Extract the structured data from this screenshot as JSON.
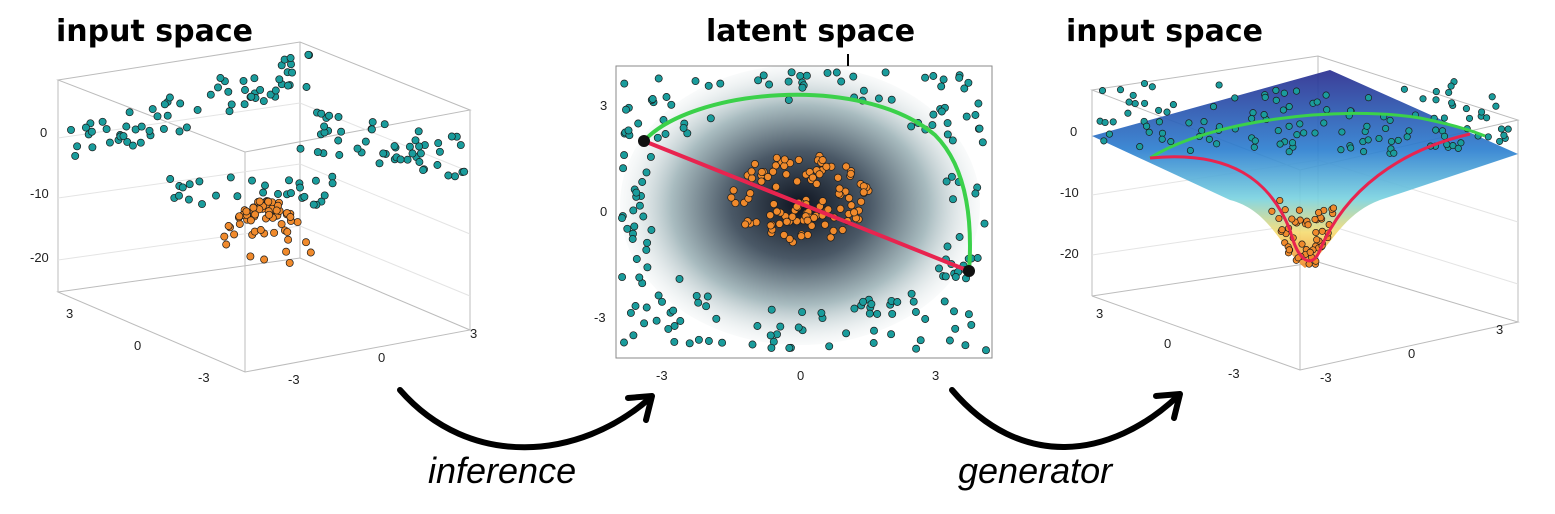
{
  "titles": {
    "left": "input space",
    "middle": "latent space",
    "right": "input space"
  },
  "arrows": {
    "inference": "inference",
    "generator": "generator"
  },
  "ticks": {
    "z": [
      "0",
      "-10",
      "-20"
    ],
    "axis": [
      "3",
      "0",
      "-3"
    ]
  },
  "colors": {
    "teal_points": "#1a9c9c",
    "orange_points": "#f08a2c",
    "green_path": "#3bd14a",
    "red_path": "#e8244f",
    "endpoints": "#111111"
  }
}
